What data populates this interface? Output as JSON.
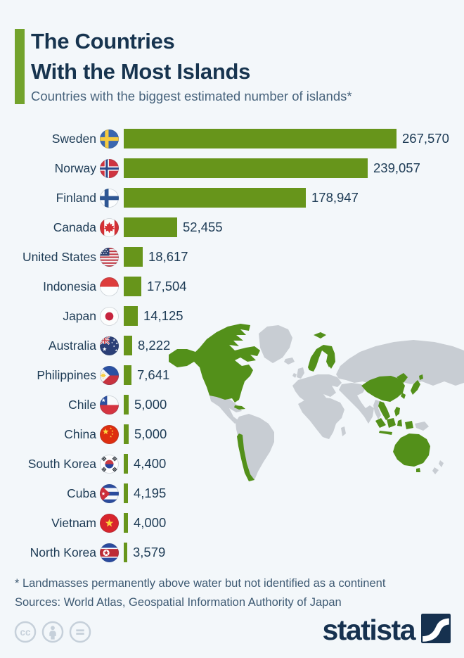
{
  "header": {
    "title": "The Countries\nWith the Most Islands",
    "subtitle": "Countries with the biggest estimated number of islands*"
  },
  "chart_data": {
    "type": "bar",
    "orientation": "horizontal",
    "title": "The Countries With the Most Islands",
    "subtitle": "Countries with the biggest estimated number of islands*",
    "categories": [
      "Sweden",
      "Norway",
      "Finland",
      "Canada",
      "United States",
      "Indonesia",
      "Japan",
      "Australia",
      "Philippines",
      "Chile",
      "China",
      "South Korea",
      "Cuba",
      "Vietnam",
      "North Korea"
    ],
    "values": [
      267570,
      239057,
      178947,
      52455,
      18617,
      17504,
      14125,
      8222,
      7641,
      5000,
      5000,
      4400,
      4195,
      4000,
      3579
    ],
    "value_labels": [
      "267,570",
      "239,057",
      "178,947",
      "52,455",
      "18,617",
      "17,504",
      "14,125",
      "8,222",
      "7,641",
      "5,000",
      "5,000",
      "4,400",
      "4,195",
      "4,000",
      "3,579"
    ],
    "flags": [
      "sweden",
      "norway",
      "finland",
      "canada",
      "united-states",
      "indonesia",
      "japan",
      "australia",
      "philippines",
      "chile",
      "china",
      "south-korea",
      "cuba",
      "vietnam",
      "north-korea"
    ],
    "xlim": [
      0,
      267570
    ],
    "unit": "islands",
    "grid": false,
    "legend": false,
    "bar_color": "#67951b",
    "value_label_position": "right of bar"
  },
  "map": {
    "description": "world-map-background",
    "highlighted_countries": [
      "Canada",
      "United States",
      "Cuba",
      "Chile",
      "Norway",
      "Sweden",
      "Finland",
      "Svalbard",
      "China",
      "North Korea",
      "South Korea",
      "Japan",
      "Vietnam",
      "Philippines",
      "Indonesia",
      "Australia"
    ],
    "land_color": "#c8cdd3",
    "highlight_color": "#53901a"
  },
  "footer": {
    "footnote": "* Landmasses permanently above water but not identified as a continent",
    "sources": "Sources: World Atlas, Geospatial Information Authority of Japan",
    "brand": "statista"
  },
  "colors": {
    "background": "#f3f7fa",
    "accent_green": "#73a32c",
    "bar_green": "#67951b",
    "map_gray": "#c8cdd3",
    "map_green": "#53901a",
    "title_navy": "#17344f",
    "subtitle_slate": "#47637c",
    "footnote_slate": "#3e5a73",
    "logo_navy": "#16314f",
    "license_gray": "#c6d0da"
  }
}
